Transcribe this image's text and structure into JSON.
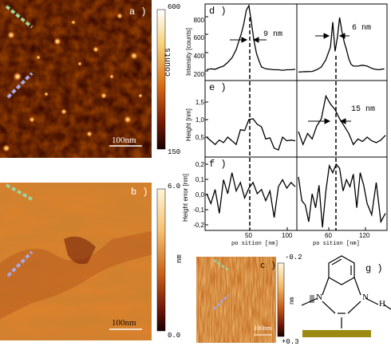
{
  "panels": {
    "a": {
      "letter": "a )",
      "scalebar": "100nm",
      "colorbar": {
        "max": "600",
        "min": "150",
        "unit": "counts"
      }
    },
    "b": {
      "letter": "b )",
      "scalebar": "100nm",
      "colorbar": {
        "max": "6.0",
        "min": "0.0",
        "unit": "nm"
      }
    },
    "c": {
      "letter": "c )",
      "scalebar": "100nm",
      "colorbar": {
        "max": "-0.2",
        "min": "+0.3",
        "unit": "nm"
      }
    },
    "g": {
      "letter": "g )"
    }
  },
  "profiles": {
    "x_label": "po sition [nm]",
    "d": {
      "letter": "d )",
      "ylabel": "Intensity [counts]",
      "yticks": [
        "800",
        "600",
        "400",
        "200"
      ],
      "ann_left": "9 nm",
      "ann_right": "6 nm"
    },
    "e": {
      "letter": "e )",
      "ylabel": "Height [nm]",
      "yticks": [
        "1,5",
        "1,0",
        "0,5"
      ],
      "ann_right": "15 nm"
    },
    "f": {
      "letter": "f )",
      "ylabel": "Height error [nm]",
      "yticks": [
        "0,2",
        "0,1",
        "0,0",
        "-0,1",
        "-0,2"
      ]
    },
    "xticks_left": [
      "50",
      "100"
    ],
    "xticks_right": [
      "60",
      "120"
    ]
  },
  "molecule": {
    "atom_n1": "N",
    "atom_n2": "N",
    "atom_h": "H"
  },
  "chart_data": [
    {
      "type": "line",
      "panel": "d",
      "ylabel": "Intensity [counts]",
      "ylim": [
        100,
        900
      ],
      "series": [
        {
          "x": [
            0,
            5,
            10,
            15,
            20,
            25,
            30,
            35,
            38,
            41,
            44,
            47,
            50,
            53,
            56,
            59,
            62,
            65,
            70,
            75,
            80,
            85,
            90,
            95,
            100,
            105
          ],
          "values": [
            200,
            210,
            205,
            225,
            240,
            280,
            330,
            420,
            510,
            590,
            700,
            850,
            900,
            720,
            520,
            380,
            300,
            230,
            210,
            205,
            200,
            200,
            195,
            200,
            200,
            205
          ]
        },
        {
          "x": [
            60,
            64,
            68,
            72,
            76,
            80,
            84,
            88,
            90,
            92,
            94,
            96,
            98,
            100,
            102,
            104,
            106,
            108,
            112,
            116,
            120,
            125,
            130,
            135
          ],
          "values": [
            175,
            178,
            180,
            182,
            200,
            230,
            310,
            450,
            720,
            400,
            550,
            770,
            620,
            500,
            420,
            320,
            260,
            240,
            240,
            250,
            240,
            210,
            200,
            210
          ]
        }
      ],
      "annotations": [
        "9 nm",
        "6 nm"
      ]
    },
    {
      "type": "line",
      "panel": "e",
      "ylabel": "Height [nm]",
      "ylim": [
        0,
        2.0
      ],
      "series": [
        {
          "x": [
            0,
            5,
            10,
            15,
            20,
            25,
            30,
            35,
            40,
            45,
            50,
            55,
            60,
            65,
            70,
            75,
            80,
            85,
            90,
            95,
            100,
            105
          ],
          "values": [
            0.5,
            0.4,
            0.3,
            0.42,
            0.35,
            0.5,
            0.4,
            0.3,
            0.7,
            0.68,
            0.98,
            1.0,
            0.85,
            0.78,
            0.45,
            0.48,
            0.2,
            0.15,
            0.5,
            0.4,
            0.42,
            0.4
          ]
        },
        {
          "x": [
            60,
            64,
            68,
            72,
            76,
            80,
            84,
            88,
            92,
            96,
            100,
            104,
            108,
            112,
            116,
            120,
            124,
            128,
            132,
            136
          ],
          "values": [
            0.65,
            0.3,
            0.6,
            0.45,
            0.8,
            1.0,
            1.62,
            1.4,
            1.25,
            1.0,
            0.8,
            0.6,
            0.3,
            0.45,
            0.38,
            0.5,
            0.4,
            0.35,
            0.42,
            0.55
          ]
        }
      ],
      "annotations": [
        "15 nm"
      ]
    },
    {
      "type": "line",
      "panel": "f",
      "ylabel": "Height error [nm]",
      "ylim": [
        -0.25,
        0.25
      ],
      "series": [
        {
          "x": [
            0,
            5,
            10,
            15,
            20,
            25,
            30,
            35,
            40,
            45,
            50,
            55,
            60,
            65,
            70,
            75,
            80,
            85,
            90,
            95,
            100,
            105
          ],
          "values": [
            0.0,
            -0.07,
            0.03,
            -0.14,
            0.1,
            0.0,
            0.15,
            0.02,
            0.08,
            -0.03,
            0.04,
            0.08,
            0.0,
            0.03,
            -0.05,
            0.02,
            -0.17,
            0.05,
            0.1,
            0.04,
            0.08,
            0.05
          ]
        },
        {
          "x": [
            60,
            63,
            66,
            69,
            72,
            75,
            78,
            81,
            84,
            87,
            90,
            93,
            96,
            99,
            102,
            105,
            108,
            111,
            114,
            117,
            120,
            124,
            128,
            132,
            136
          ],
          "values": [
            0.12,
            -0.05,
            -0.08,
            -0.2,
            0.0,
            -0.1,
            0.06,
            -0.24,
            0.02,
            0.2,
            0.15,
            0.21,
            0.18,
            0.02,
            0.1,
            0.05,
            0.14,
            -0.1,
            0.15,
            0.06,
            -0.07,
            -0.15,
            0.08,
            -0.2,
            -0.14
          ]
        }
      ]
    }
  ]
}
